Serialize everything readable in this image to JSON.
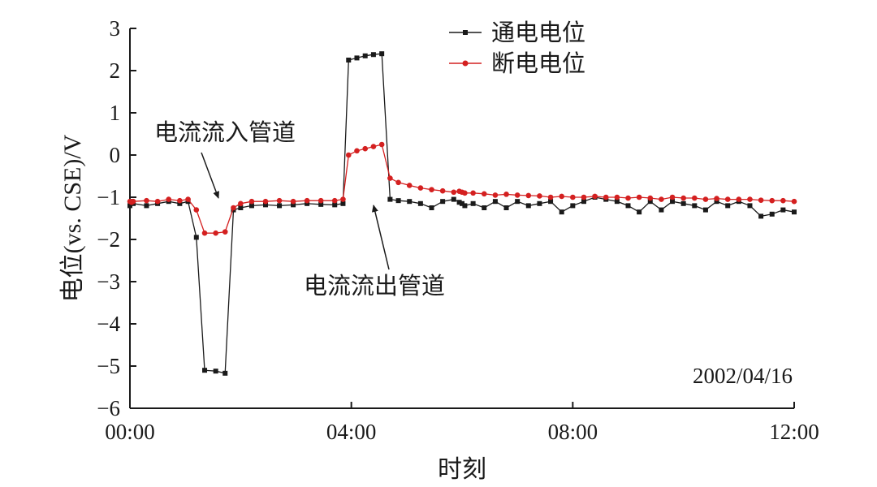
{
  "chart_data": {
    "type": "line",
    "xlabel": "时刻",
    "ylabel": "电位(vs. CSE)/V",
    "xlim": [
      0,
      12
    ],
    "ylim": [
      -6,
      3
    ],
    "x_ticks": [
      0,
      4,
      8,
      12
    ],
    "x_tick_labels": [
      "00:00",
      "04:00",
      "08:00",
      "12:00"
    ],
    "y_ticks": [
      3,
      2,
      1,
      0,
      -1,
      -2,
      -3,
      -4,
      -5,
      -6
    ],
    "y_tick_labels": [
      "3",
      "2",
      "1",
      "0",
      "−1",
      "−2",
      "−3",
      "−4",
      "−5",
      "−6"
    ],
    "grid": false,
    "legend_position": "top-right",
    "x_unit": "hours",
    "series": [
      {
        "name": "通电电位",
        "color": "#1a1a1a",
        "marker": "square",
        "x": [
          0.0,
          0.03,
          0.06,
          0.3,
          0.5,
          0.7,
          0.9,
          1.05,
          1.2,
          1.35,
          1.55,
          1.72,
          1.87,
          2.0,
          2.2,
          2.45,
          2.7,
          2.95,
          3.2,
          3.45,
          3.7,
          3.85,
          3.95,
          4.1,
          4.25,
          4.4,
          4.55,
          4.7,
          4.85,
          5.05,
          5.25,
          5.45,
          5.65,
          5.85,
          5.95,
          6.0,
          6.05,
          6.2,
          6.4,
          6.6,
          6.8,
          7.0,
          7.2,
          7.4,
          7.6,
          7.8,
          8.0,
          8.2,
          8.4,
          8.6,
          8.8,
          9.0,
          9.2,
          9.4,
          9.6,
          9.8,
          10.0,
          10.2,
          10.4,
          10.6,
          10.8,
          11.0,
          11.2,
          11.4,
          11.6,
          11.8,
          12.0
        ],
        "y": [
          -1.2,
          -1.1,
          -1.15,
          -1.2,
          -1.15,
          -1.1,
          -1.15,
          -1.1,
          -1.95,
          -5.1,
          -5.12,
          -5.17,
          -1.3,
          -1.25,
          -1.2,
          -1.18,
          -1.2,
          -1.18,
          -1.15,
          -1.17,
          -1.18,
          -1.15,
          2.25,
          2.3,
          2.35,
          2.38,
          2.4,
          -1.05,
          -1.08,
          -1.1,
          -1.15,
          -1.25,
          -1.1,
          -1.05,
          -1.12,
          -1.15,
          -1.2,
          -1.15,
          -1.25,
          -1.1,
          -1.25,
          -1.1,
          -1.2,
          -1.15,
          -1.1,
          -1.35,
          -1.2,
          -1.1,
          -1.0,
          -1.05,
          -1.1,
          -1.2,
          -1.35,
          -1.1,
          -1.3,
          -1.1,
          -1.15,
          -1.2,
          -1.3,
          -1.1,
          -1.2,
          -1.1,
          -1.2,
          -1.45,
          -1.4,
          -1.3,
          -1.35
        ]
      },
      {
        "name": "断电电位",
        "color": "#d42020",
        "marker": "circle",
        "x": [
          0.0,
          0.03,
          0.06,
          0.3,
          0.5,
          0.7,
          0.9,
          1.05,
          1.2,
          1.35,
          1.55,
          1.72,
          1.87,
          2.0,
          2.2,
          2.45,
          2.7,
          2.95,
          3.2,
          3.45,
          3.7,
          3.85,
          3.95,
          4.1,
          4.25,
          4.4,
          4.55,
          4.7,
          4.85,
          5.05,
          5.25,
          5.45,
          5.65,
          5.85,
          5.95,
          6.0,
          6.05,
          6.2,
          6.4,
          6.6,
          6.8,
          7.0,
          7.2,
          7.4,
          7.6,
          7.8,
          8.0,
          8.2,
          8.4,
          8.6,
          8.8,
          9.0,
          9.2,
          9.4,
          9.6,
          9.8,
          10.0,
          10.2,
          10.4,
          10.6,
          10.8,
          11.0,
          11.2,
          11.4,
          11.6,
          11.8,
          12.0
        ],
        "y": [
          -1.1,
          -1.12,
          -1.1,
          -1.08,
          -1.1,
          -1.05,
          -1.08,
          -1.05,
          -1.3,
          -1.85,
          -1.85,
          -1.82,
          -1.25,
          -1.15,
          -1.1,
          -1.1,
          -1.08,
          -1.1,
          -1.08,
          -1.08,
          -1.08,
          -1.05,
          0.0,
          0.1,
          0.15,
          0.2,
          0.25,
          -0.55,
          -0.65,
          -0.72,
          -0.78,
          -0.82,
          -0.85,
          -0.88,
          -0.86,
          -0.88,
          -0.9,
          -0.9,
          -0.92,
          -0.95,
          -0.93,
          -0.95,
          -0.96,
          -0.97,
          -1.0,
          -0.98,
          -1.0,
          -1.0,
          -0.98,
          -1.0,
          -1.0,
          -1.02,
          -1.0,
          -1.02,
          -1.05,
          -1.0,
          -1.02,
          -1.02,
          -1.05,
          -1.03,
          -1.05,
          -1.05,
          -1.05,
          -1.07,
          -1.08,
          -1.08,
          -1.1
        ]
      }
    ],
    "annotations": [
      {
        "text": "电流流入管道",
        "arrow_to_x": 1.6,
        "arrow_to_y": -1.15
      },
      {
        "text": "电流流出管道",
        "arrow_to_x": 4.4,
        "arrow_to_y": -1.15
      },
      {
        "text": "2002/04/16"
      }
    ]
  }
}
